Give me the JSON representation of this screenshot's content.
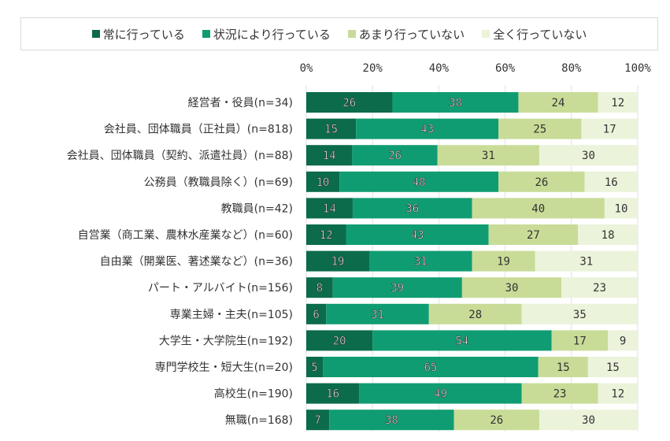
{
  "chart_data": {
    "type": "bar",
    "orientation": "horizontal",
    "stacked": true,
    "xlim": [
      0,
      100
    ],
    "x_ticks": [
      "0%",
      "20%",
      "40%",
      "60%",
      "80%",
      "100%"
    ],
    "grid": true,
    "legend_position": "top",
    "categories": [
      "経営者・役員(n=34)",
      "会社員、団体職員（正社員）(n=818)",
      "会社員、団体職員（契約、派遣社員）(n=88)",
      "公務員（教職員除く）(n=69)",
      "教職員(n=42)",
      "自営業（商工業、農林水産業など）(n=60)",
      "自由業（開業医、著述業など）(n=36)",
      "パート・アルバイト(n=156)",
      "専業主婦・主夫(n=105)",
      "大学生・大学院生(n=192)",
      "専門学校生・短大生(n=20)",
      "高校生(n=190)",
      "無職(n=168)"
    ],
    "series": [
      {
        "name": "常に行っている",
        "color": "#0b6b4b",
        "values": [
          26,
          15,
          14,
          10,
          14,
          12,
          19,
          8,
          6,
          20,
          5,
          16,
          7
        ]
      },
      {
        "name": "状況により行っている",
        "color": "#109c72",
        "values": [
          38,
          43,
          26,
          48,
          36,
          43,
          31,
          39,
          31,
          54,
          65,
          49,
          38
        ]
      },
      {
        "name": "あまり行っていない",
        "color": "#c8dc98",
        "values": [
          24,
          25,
          31,
          26,
          40,
          27,
          19,
          30,
          28,
          17,
          15,
          23,
          26
        ]
      },
      {
        "name": "全く行っていない",
        "color": "#ebf3da",
        "values": [
          12,
          17,
          30,
          16,
          10,
          18,
          31,
          23,
          35,
          9,
          15,
          12,
          30
        ]
      }
    ]
  }
}
